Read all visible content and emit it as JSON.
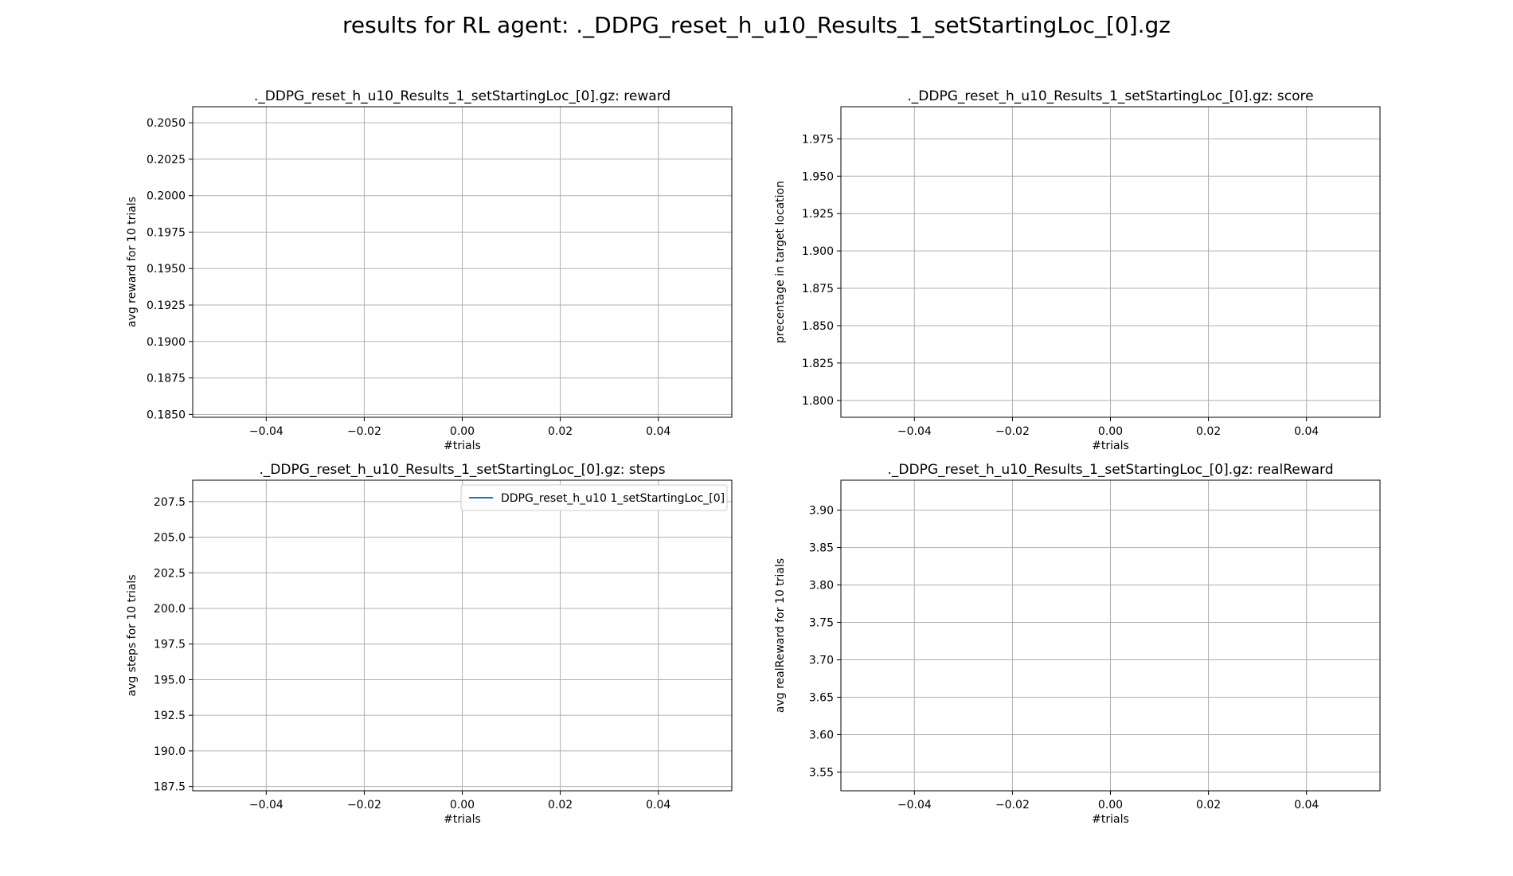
{
  "suptitle": "results for RL agent: ._DDPG_reset_h_u10_Results_1_setStartingLoc_[0].gz",
  "chart_data": [
    {
      "type": "line",
      "title": "._DDPG_reset_h_u10_Results_1_setStartingLoc_[0].gz: reward",
      "xlabel": "#trials",
      "ylabel": "avg reward for 10 trials",
      "xlim": [
        -0.055,
        0.055
      ],
      "ylim": [
        0.1848,
        0.2061
      ],
      "xticks": [
        -0.04,
        -0.02,
        0.0,
        0.02,
        0.04
      ],
      "xtick_labels": [
        "−0.04",
        "−0.02",
        "0.00",
        "0.02",
        "0.04"
      ],
      "yticks": [
        0.185,
        0.1875,
        0.19,
        0.1925,
        0.195,
        0.1975,
        0.2,
        0.2025,
        0.205
      ],
      "ytick_labels": [
        "0.1850",
        "0.1875",
        "0.1900",
        "0.1925",
        "0.1950",
        "0.1975",
        "0.2000",
        "0.2025",
        "0.2050"
      ],
      "grid": true,
      "series": [
        {
          "values": [],
          "color": "#1f77b4"
        }
      ]
    },
    {
      "type": "line",
      "title": "._DDPG_reset_h_u10_Results_1_setStartingLoc_[0].gz: score",
      "xlabel": "#trials",
      "ylabel": "precentage in target location",
      "xlim": [
        -0.055,
        0.055
      ],
      "ylim": [
        1.7887,
        1.9965
      ],
      "xticks": [
        -0.04,
        -0.02,
        0.0,
        0.02,
        0.04
      ],
      "xtick_labels": [
        "−0.04",
        "−0.02",
        "0.00",
        "0.02",
        "0.04"
      ],
      "yticks": [
        1.8,
        1.825,
        1.85,
        1.875,
        1.9,
        1.925,
        1.95,
        1.975
      ],
      "ytick_labels": [
        "1.800",
        "1.825",
        "1.850",
        "1.875",
        "1.900",
        "1.925",
        "1.950",
        "1.975"
      ],
      "grid": true,
      "series": [
        {
          "values": [],
          "color": "#1f77b4"
        }
      ]
    },
    {
      "type": "line",
      "title": "._DDPG_reset_h_u10_Results_1_setStartingLoc_[0].gz: steps",
      "xlabel": "#trials",
      "ylabel": "avg steps for 10 trials",
      "xlim": [
        -0.055,
        0.055
      ],
      "ylim": [
        187.2,
        209.0
      ],
      "xticks": [
        -0.04,
        -0.02,
        0.0,
        0.02,
        0.04
      ],
      "xtick_labels": [
        "−0.04",
        "−0.02",
        "0.00",
        "0.02",
        "0.04"
      ],
      "yticks": [
        187.5,
        190.0,
        192.5,
        195.0,
        197.5,
        200.0,
        202.5,
        205.0,
        207.5
      ],
      "ytick_labels": [
        "187.5",
        "190.0",
        "192.5",
        "195.0",
        "197.5",
        "200.0",
        "202.5",
        "205.0",
        "207.5"
      ],
      "grid": true,
      "legend": "top-right",
      "series": [
        {
          "name": "DDPG_reset_h_u10 1_setStartingLoc_[0]",
          "values": [],
          "color": "#1f77b4"
        }
      ]
    },
    {
      "type": "line",
      "title": "._DDPG_reset_h_u10_Results_1_setStartingLoc_[0].gz: realReward",
      "xlabel": "#trials",
      "ylabel": "avg realReward for 10 trials",
      "xlim": [
        -0.055,
        0.055
      ],
      "ylim": [
        3.525,
        3.94
      ],
      "xticks": [
        -0.04,
        -0.02,
        0.0,
        0.02,
        0.04
      ],
      "xtick_labels": [
        "−0.04",
        "−0.02",
        "0.00",
        "0.02",
        "0.04"
      ],
      "yticks": [
        3.55,
        3.6,
        3.65,
        3.7,
        3.75,
        3.8,
        3.85,
        3.9
      ],
      "ytick_labels": [
        "3.55",
        "3.60",
        "3.65",
        "3.70",
        "3.75",
        "3.80",
        "3.85",
        "3.90"
      ],
      "grid": true,
      "series": [
        {
          "values": [],
          "color": "#1f77b4"
        }
      ]
    }
  ]
}
